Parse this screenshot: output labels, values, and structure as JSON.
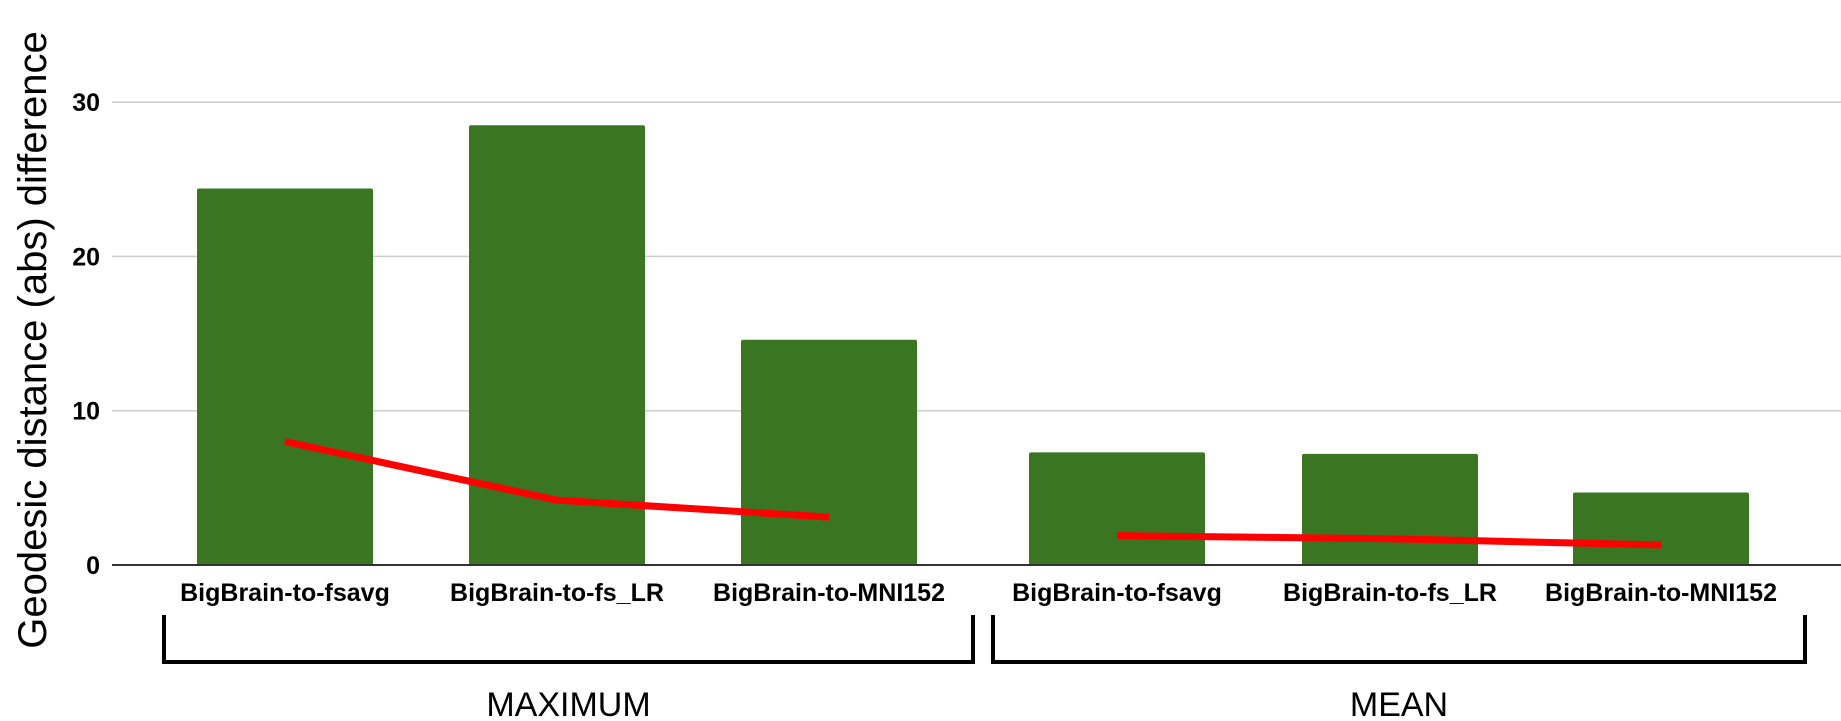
{
  "chart_data": {
    "type": "bar",
    "ylabel": "Geodesic distance (abs) difference",
    "xlabel": "",
    "title": "",
    "ylim": [
      0,
      35
    ],
    "yticks": [
      0,
      10,
      20,
      30
    ],
    "grid": true,
    "categories": [
      "BigBrain-to-fsavg",
      "BigBrain-to-fs_LR",
      "BigBrain-to-MNI152",
      "BigBrain-to-fsavg",
      "BigBrain-to-fs_LR",
      "BigBrain-to-MNI152"
    ],
    "groups": [
      {
        "label": "MAXIMUM",
        "categories": [
          0,
          1,
          2
        ]
      },
      {
        "label": "MEAN",
        "categories": [
          3,
          4,
          5
        ]
      }
    ],
    "series": [
      {
        "type": "bar",
        "color": "#3a7521",
        "values": [
          24.4,
          28.5,
          14.6,
          7.3,
          7.2,
          4.7
        ]
      },
      {
        "type": "line",
        "color": "#ff0000",
        "segments": [
          [
            0,
            1,
            2
          ],
          [
            3,
            4,
            5
          ]
        ],
        "values": [
          8.0,
          4.2,
          3.1,
          1.9,
          1.7,
          1.3
        ]
      }
    ]
  }
}
